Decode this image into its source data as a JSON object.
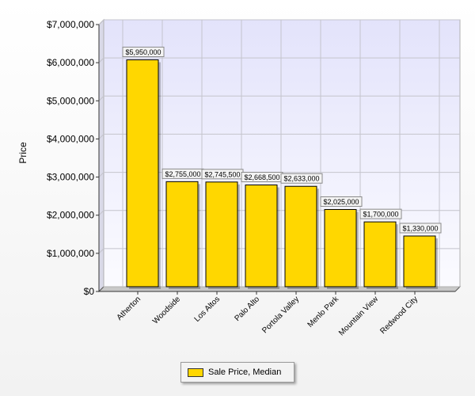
{
  "chart_data": {
    "type": "bar",
    "categories": [
      "Atherton",
      "Woodside",
      "Los Altos",
      "Palo Alto",
      "Portola Valley",
      "Menlo Park",
      "Mountain View",
      "Redwood City"
    ],
    "series": [
      {
        "name": "Sale Price, Median",
        "values": [
          5950000,
          2755000,
          2745500,
          2668500,
          2633000,
          2025000,
          1700000,
          1330000
        ],
        "data_labels": [
          "$5,950,000",
          "$2,755,000",
          "$2,745,500",
          "$2,668,500",
          "$2,633,000",
          "$2,025,000",
          "$1,700,000",
          "$1,330,000"
        ],
        "color": "#ffd700"
      }
    ],
    "title": "",
    "xlabel": "",
    "ylabel": "Price",
    "ylim": [
      0,
      7000000
    ],
    "yticks": [
      0,
      1000000,
      2000000,
      3000000,
      4000000,
      5000000,
      6000000,
      7000000
    ],
    "ytick_labels": [
      "$0",
      "$1,000,000",
      "$2,000,000",
      "$3,000,000",
      "$4,000,000",
      "$5,000,000",
      "$6,000,000",
      "$7,000,000"
    ],
    "grid": true,
    "legend_position": "bottom-center",
    "plot_background": "#e8e8f8",
    "bar_border": "#000000"
  },
  "legend": {
    "label": "Sale Price, Median"
  }
}
